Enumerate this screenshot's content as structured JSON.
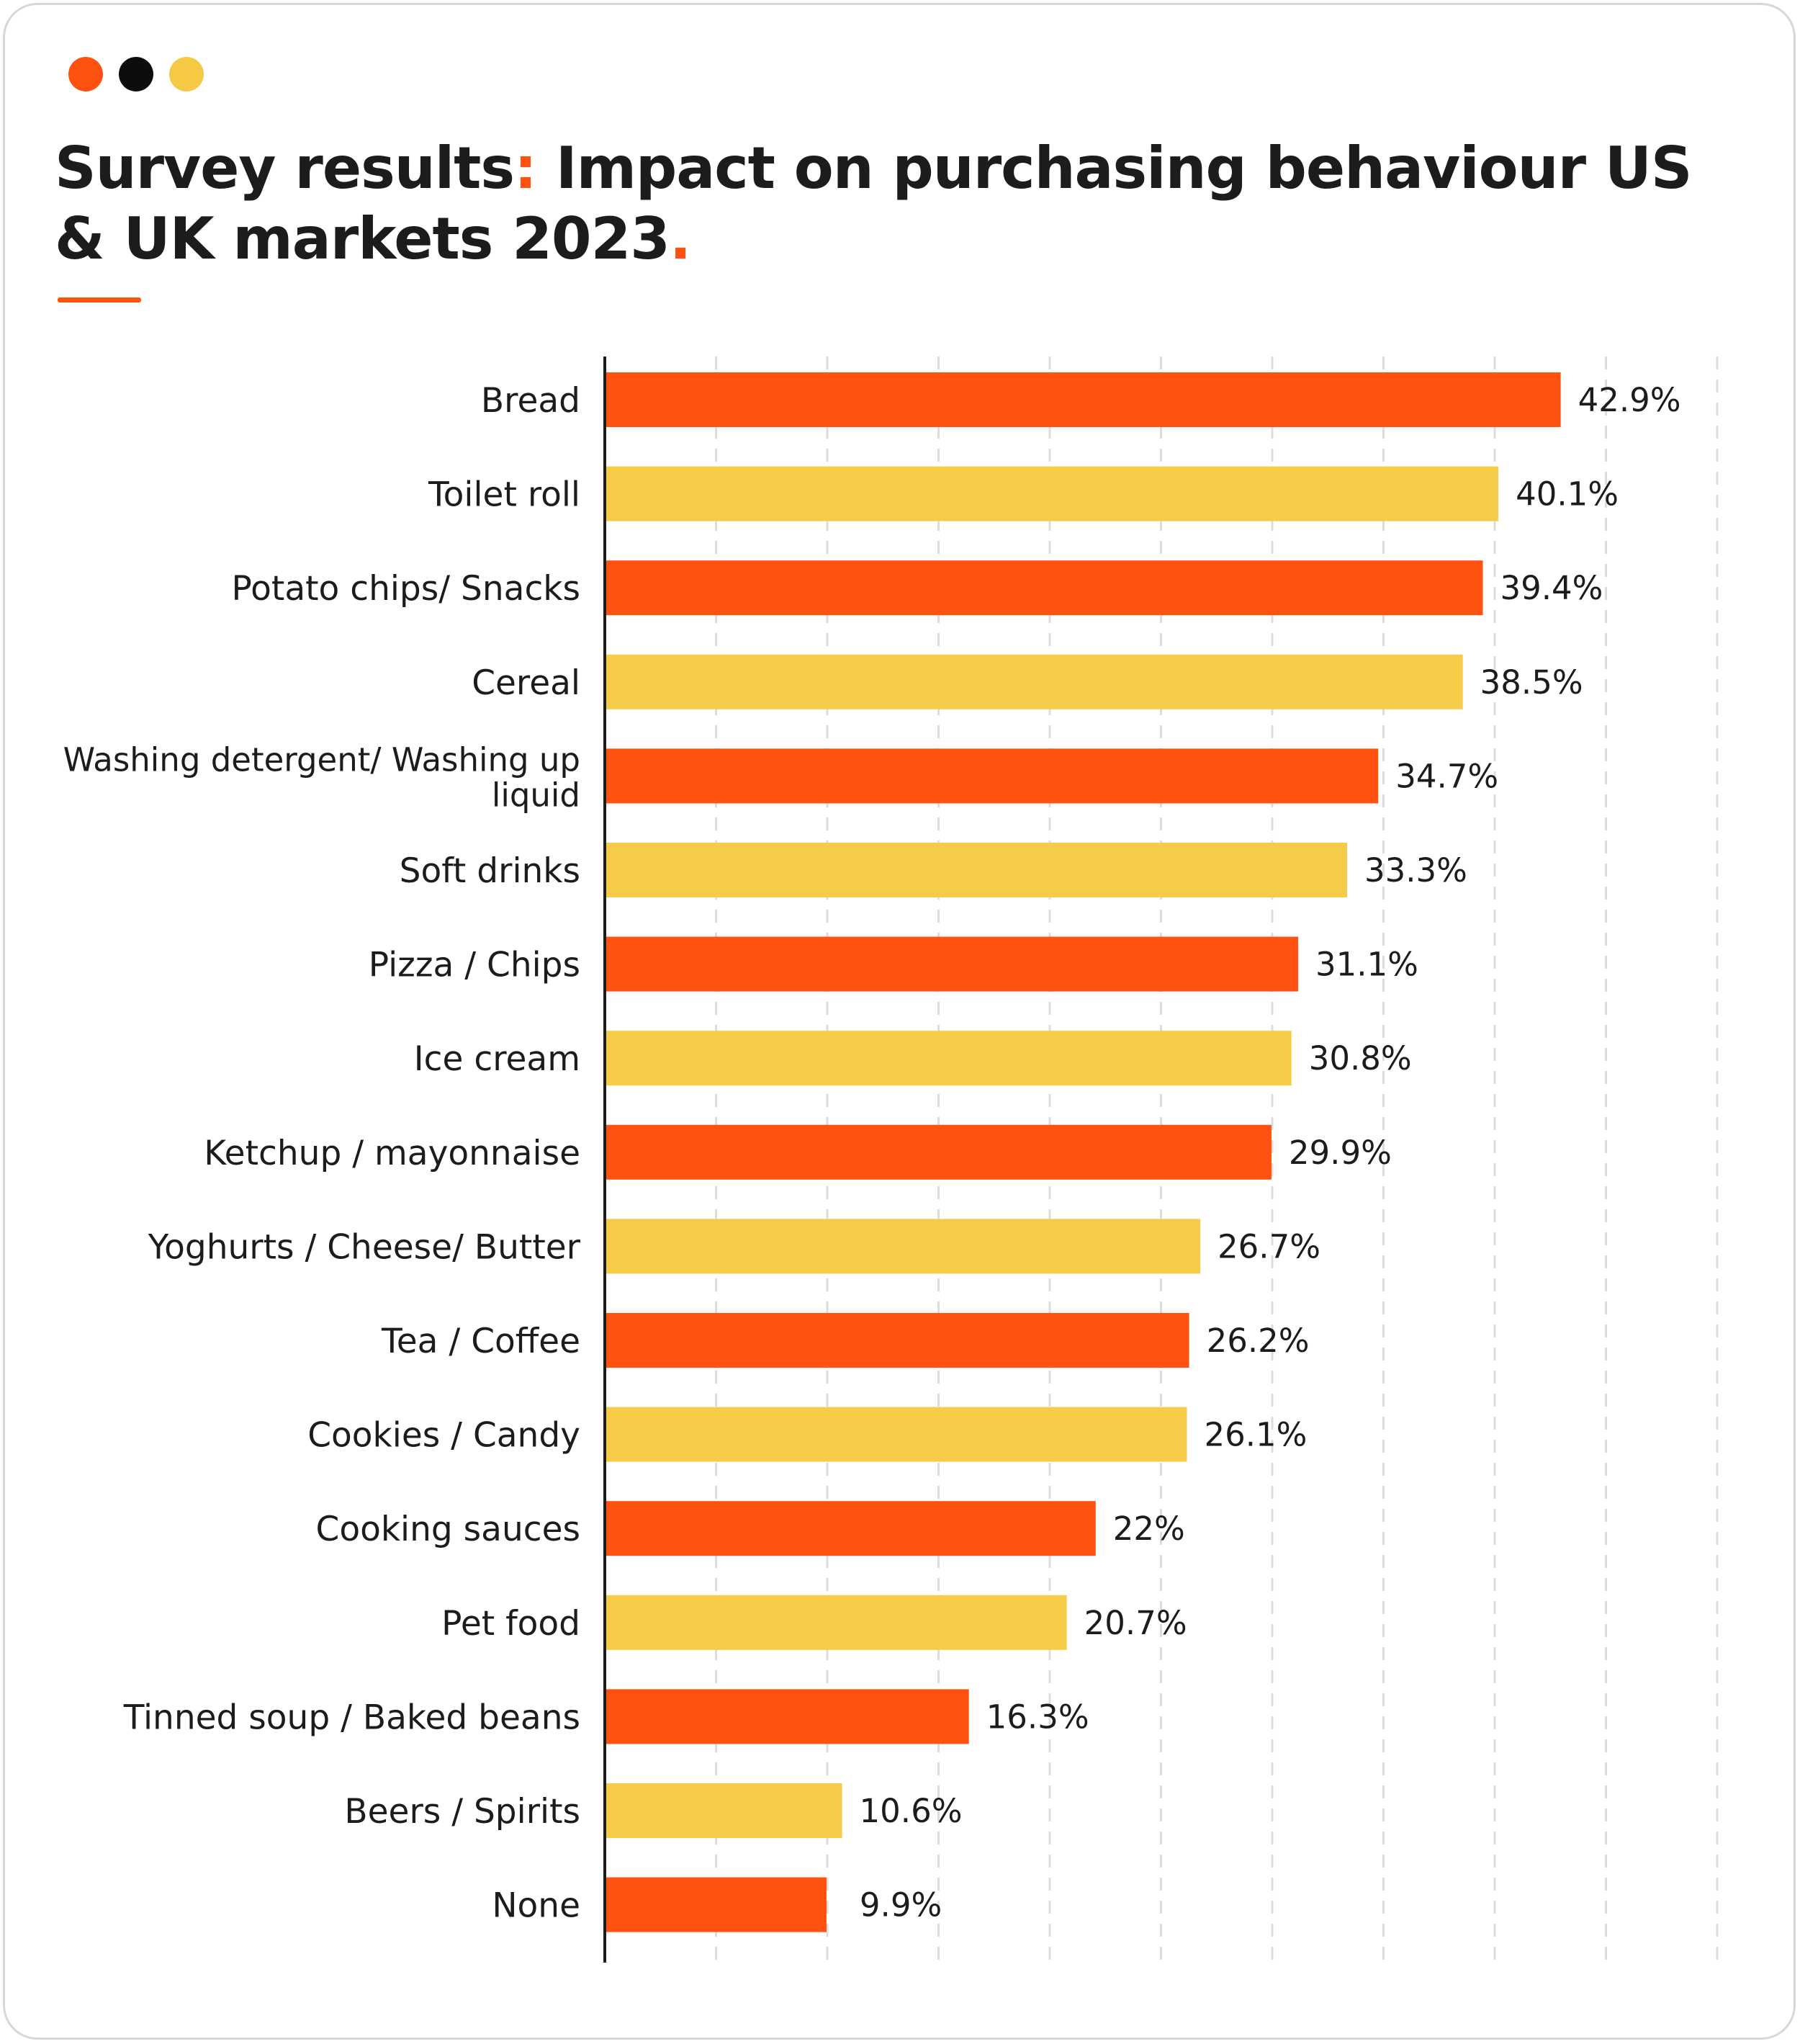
{
  "header": {
    "title_part1": "Survey results",
    "title_colon": ":",
    "title_part2": " Impact on purchasing behaviour US & UK markets 2023",
    "title_period": "."
  },
  "window_dots": [
    {
      "name": "orange-dot",
      "color": "#ff5210"
    },
    {
      "name": "black-dot",
      "color": "#0d0d0d"
    },
    {
      "name": "yellow-dot",
      "color": "#f6c944"
    }
  ],
  "colors": {
    "accent": "#ff5210",
    "primary_bar": "#ff5210",
    "secondary_bar": "#f6cb47",
    "text": "#1c1c1c"
  },
  "chart_data": {
    "type": "bar",
    "orientation": "horizontal",
    "title": "Survey results: Impact on purchasing behaviour US & UK markets 2023.",
    "categories": [
      "Bread",
      "Toilet roll",
      "Potato chips/ Snacks",
      "Cereal",
      "Washing detergent/ Washing up liquid",
      "Soft drinks",
      "Pizza / Chips",
      "Ice cream",
      "Ketchup / mayonnaise",
      "Yoghurts / Cheese/ Butter",
      "Tea / Coffee",
      "Cookies / Candy",
      "Cooking sauces",
      "Pet food",
      "Tinned soup / Baked beans",
      "Beers / Spirits",
      "None"
    ],
    "values": [
      42.9,
      40.1,
      39.4,
      38.5,
      34.7,
      33.3,
      31.1,
      30.8,
      29.9,
      26.7,
      26.2,
      26.1,
      22,
      20.7,
      16.3,
      10.6,
      9.9
    ],
    "value_labels": [
      "42.9%",
      "40.1%",
      "39.4%",
      "38.5%",
      "34.7%",
      "33.3%",
      "31.1%",
      "30.8%",
      "29.9%",
      "26.7%",
      "26.2%",
      "26.1%",
      "22%",
      "20.7%",
      "16.3%",
      "10.6%",
      "9.9%"
    ],
    "bar_colors": [
      "#ff5210",
      "#f6cb47",
      "#ff5210",
      "#f6cb47",
      "#ff5210",
      "#f6cb47",
      "#ff5210",
      "#f6cb47",
      "#ff5210",
      "#f6cb47",
      "#ff5210",
      "#f6cb47",
      "#ff5210",
      "#f6cb47",
      "#ff5210",
      "#f6cb47",
      "#ff5210"
    ],
    "xlim": [
      0,
      50
    ],
    "grid": "vertical-dashed",
    "legend": "none",
    "xlabel": "",
    "ylabel": ""
  }
}
